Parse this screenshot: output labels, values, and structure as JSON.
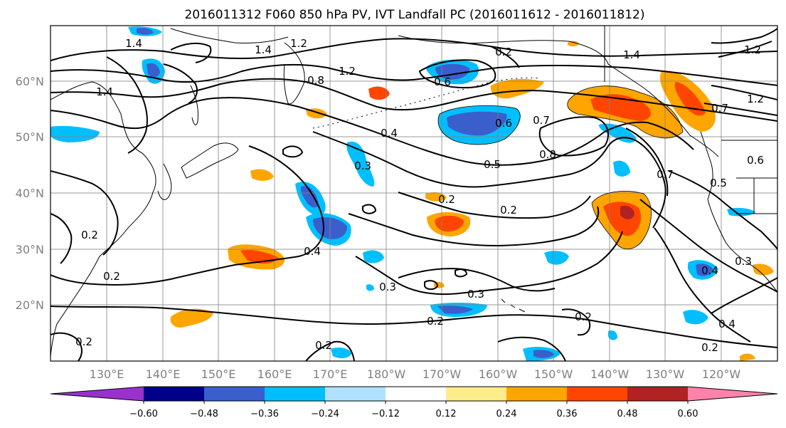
{
  "title": "2016011312 F060 850 hPa PV, IVT Landfall PC (2016011612 - 2016011812)",
  "lat_labels": [
    "60°N",
    "50°N",
    "40°N",
    "30°N",
    "20°N"
  ],
  "lon_labels": [
    "130°E",
    "140°E",
    "150°E",
    "160°E",
    "170°E",
    "180°W",
    "170°W",
    "160°W",
    "150°W",
    "140°W",
    "130°W",
    "120°W"
  ],
  "colorbar": {
    "tick_labels": [
      "−0.60",
      "−0.48",
      "−0.36",
      "−0.24",
      "−0.12",
      "0.12",
      "0.24",
      "0.36",
      "0.48",
      "0.60"
    ],
    "colors": [
      "#9932cc",
      "#00008b",
      "#3a5fcd",
      "#00bfff",
      "#b0e2ff",
      "#ffffff",
      "#ffec8b",
      "#ffa500",
      "#ff4500",
      "#b22222",
      "#ff82ab"
    ]
  },
  "contour_labels": [
    "1.4",
    "1.2",
    "1.4",
    "1.2",
    "1.4",
    "0.8",
    "1.4",
    "0.6",
    "0.6",
    "0.4",
    "0.3",
    "0.5",
    "0.7",
    "0.8",
    "0.7",
    "0.2",
    "0.2",
    "0.4",
    "0.2",
    "0.3",
    "0.2",
    "0.3",
    "0.2",
    "0.2",
    "0.2",
    "0.4",
    "0.5",
    "0.3",
    "0.4",
    "1.2",
    "0.7",
    "0.6",
    "0.2",
    "0.2",
    "0.2",
    "1.2"
  ]
}
